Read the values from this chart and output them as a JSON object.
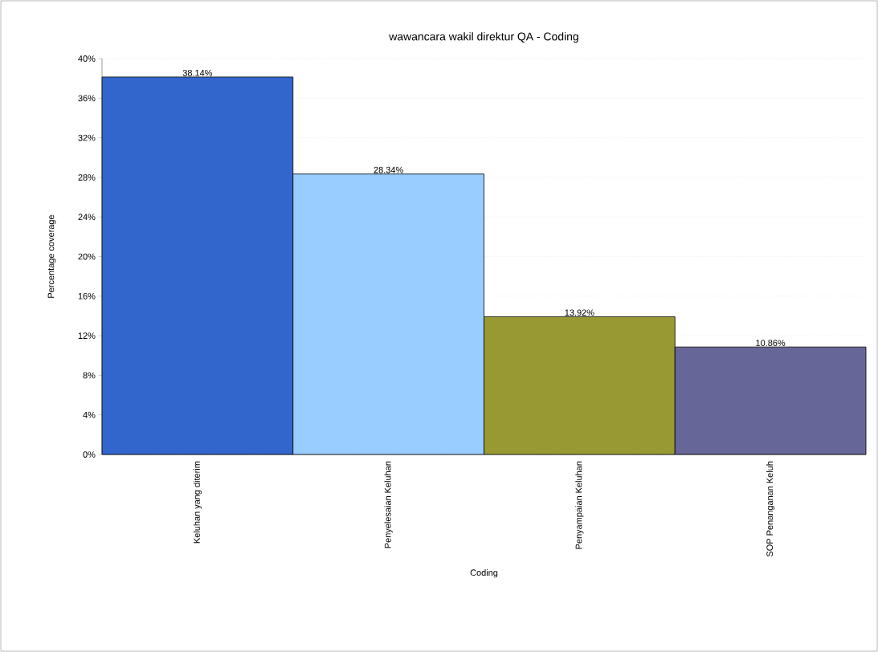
{
  "chart_data": {
    "type": "bar",
    "title": "wawancara wakil direktur QA - Coding",
    "xlabel": "Coding",
    "ylabel": "Percentage coverage",
    "categories": [
      "Keluhan yang diterim",
      "Penyelesaian Keluhan",
      "Penyampaian Keluhan",
      "SOP Penanganan Keluh"
    ],
    "values": [
      38.14,
      28.34,
      13.92,
      10.86
    ],
    "value_labels": [
      "38.14%",
      "28.34%",
      "13.92%",
      "10.86%"
    ],
    "colors": [
      "#3366cc",
      "#99ccff",
      "#999933",
      "#666699"
    ],
    "ylim": [
      0,
      40
    ],
    "yticks": [
      {
        "value": 0,
        "label": "0%"
      },
      {
        "value": 4,
        "label": "4%"
      },
      {
        "value": 8,
        "label": "8%"
      },
      {
        "value": 12,
        "label": "12%"
      },
      {
        "value": 16,
        "label": "16%"
      },
      {
        "value": 20,
        "label": "20%"
      },
      {
        "value": 24,
        "label": "24%"
      },
      {
        "value": 28,
        "label": "28%"
      },
      {
        "value": 32,
        "label": "32%"
      },
      {
        "value": 36,
        "label": "36%"
      },
      {
        "value": 40,
        "label": "40%"
      }
    ],
    "grid": "y"
  }
}
